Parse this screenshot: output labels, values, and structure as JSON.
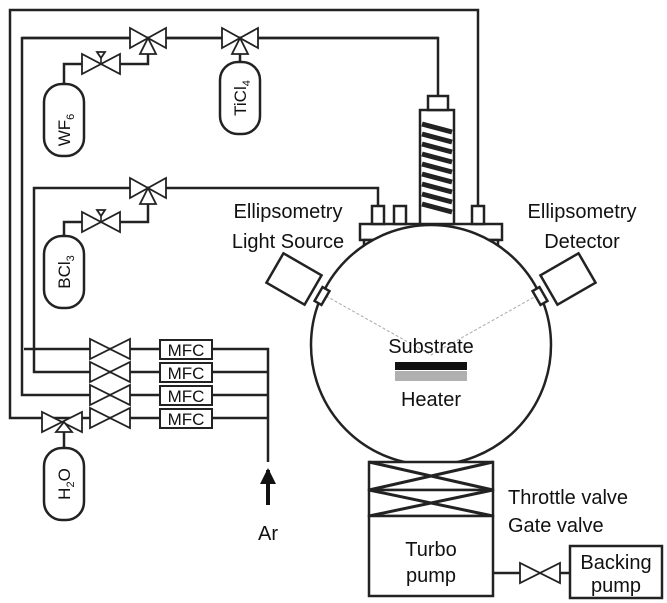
{
  "gas_cylinders": {
    "wf6": {
      "base": "WF",
      "sub": "6"
    },
    "ticl4": {
      "base": "TiCl",
      "sub": "4"
    },
    "bcl3": {
      "base": "BCl",
      "sub": "3"
    },
    "h2o": {
      "base": "H",
      "sub": "2",
      "tail": "O"
    }
  },
  "mfc_labels": [
    "MFC",
    "MFC",
    "MFC",
    "MFC"
  ],
  "ellipsometry": {
    "source_line1": "Ellipsometry",
    "source_line2": "Light Source",
    "detector_line1": "Ellipsometry",
    "detector_line2": "Detector"
  },
  "chamber": {
    "substrate_label": "Substrate",
    "heater_label": "Heater"
  },
  "valves": {
    "throttle_label": "Throttle valve",
    "gate_label": "Gate valve"
  },
  "pumps": {
    "turbo_line1": "Turbo",
    "turbo_line2": "pump",
    "backing_line1": "Backing",
    "backing_line2": "pump"
  },
  "carrier_gas": "Ar",
  "colors": {
    "line": "#222222",
    "substrate": "#111111",
    "heater": "#b0b0b0"
  }
}
